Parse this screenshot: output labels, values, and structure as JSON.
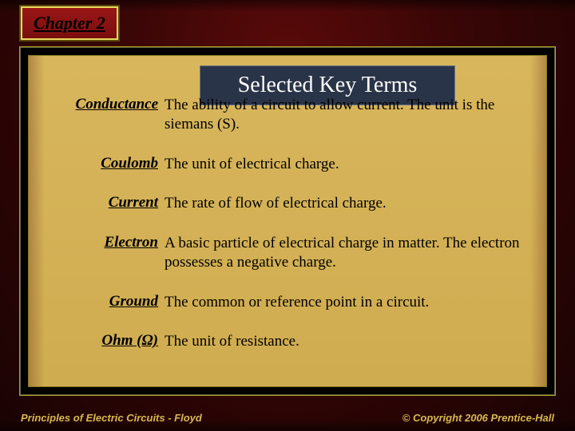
{
  "chapter_label": "Chapter 2",
  "title": "Selected Key Terms",
  "colors": {
    "badge_bg_top": "#9a1616",
    "badge_bg_bottom": "#7a0e0e",
    "badge_border": "#e8d860",
    "title_bg": "#2a3448",
    "title_text": "#ffffff",
    "content_bg_top": "#d8b65c",
    "content_bg_bottom": "#d0ac50",
    "frame_border": "#b0a020",
    "text_color": "#000000",
    "footer_color": "#d6b850",
    "slide_bg_outer": "#1a0303",
    "slide_bg_inner": "#5a0a0a"
  },
  "typography": {
    "title_fontsize": 28,
    "badge_fontsize": 22,
    "term_fontsize": 19,
    "def_fontsize": 19,
    "footer_fontsize": 13,
    "serif_family": "Times New Roman",
    "sans_family": "Arial"
  },
  "layout": {
    "slide_width": 720,
    "slide_height": 540,
    "term_col_width": 146,
    "row_gap": 26
  },
  "terms": [
    {
      "term": "Conductance",
      "definition": "The ability of a circuit to allow current. The unit is the siemans (S)."
    },
    {
      "term": "Coulomb",
      "definition": "The unit of electrical charge."
    },
    {
      "term": "Current",
      "definition": "The rate of flow of electrical charge."
    },
    {
      "term": "Electron",
      "definition": "A basic particle of electrical charge in matter. The electron possesses a negative charge."
    },
    {
      "term": "Ground",
      "definition": "The common or reference point in a circuit."
    },
    {
      "term": "Ohm (Ω)",
      "definition": "The unit of resistance."
    }
  ],
  "footer": {
    "left": "Principles of Electric Circuits - Floyd",
    "right": "© Copyright 2006 Prentice-Hall"
  }
}
